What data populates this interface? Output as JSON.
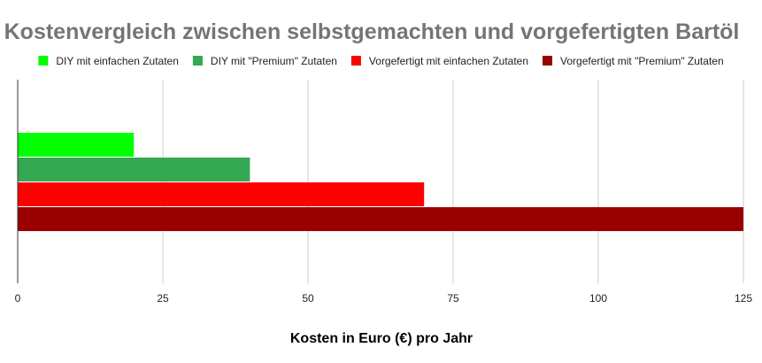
{
  "chart_data": {
    "type": "bar",
    "orientation": "horizontal",
    "title": "Kostenvergleich zwischen selbstgemachten und vorgefertigten Bartöl",
    "xlabel": "Kosten in Euro (€) pro Jahr",
    "ylabel": "",
    "xlim": [
      0,
      125
    ],
    "xticks": [
      0,
      25,
      50,
      75,
      100,
      125
    ],
    "grid": true,
    "legend_position": "top",
    "series": [
      {
        "name": "DIY mit einfachen Zutaten",
        "value": 20,
        "color": "#00ff00"
      },
      {
        "name": "DIY mit \"Premium\" Zutaten",
        "value": 40,
        "color": "#34a853"
      },
      {
        "name": "Vorgefertigt mit einfachen Zutaten",
        "value": 70,
        "color": "#ff0000"
      },
      {
        "name": "Vorgefertigt mit \"Premium\" Zutaten",
        "value": 125,
        "color": "#990000"
      }
    ]
  }
}
